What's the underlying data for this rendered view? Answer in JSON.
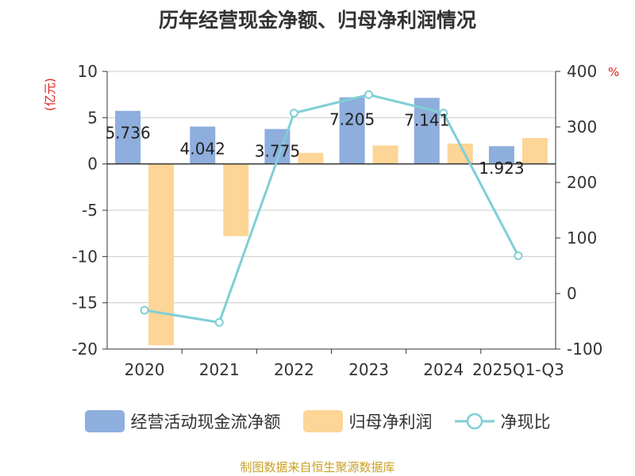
{
  "chart_data": {
    "type": "bar",
    "title": "历年经营现金净额、归母净利润情况",
    "categories": [
      "2020",
      "2021",
      "2022",
      "2023",
      "2024",
      "2025Q1-Q3"
    ],
    "series": [
      {
        "name": "经营活动现金流净额",
        "type": "bar",
        "axis": "left",
        "color": "#8eaedd",
        "values": [
          5.736,
          4.042,
          3.775,
          7.205,
          7.141,
          1.923
        ],
        "labels": [
          "5.736",
          "4.042",
          "3.775",
          "7.205",
          "7.141",
          "1.923"
        ]
      },
      {
        "name": "归母净利润",
        "type": "bar",
        "axis": "left",
        "color": "#fdd596",
        "values": [
          -19.6,
          -7.8,
          1.2,
          2.0,
          2.2,
          2.8
        ]
      },
      {
        "name": "净现比",
        "type": "line",
        "axis": "right",
        "color": "#7fcfd6",
        "values": [
          -30,
          -52,
          325,
          358,
          325,
          68
        ]
      }
    ],
    "y_left": {
      "unit": "(亿元)",
      "min": -20,
      "max": 10,
      "ticks": [
        10,
        5,
        0,
        -5,
        -10,
        -15,
        -20
      ]
    },
    "y_right": {
      "unit": "%",
      "min": -100,
      "max": 400,
      "ticks": [
        400,
        300,
        200,
        100,
        0,
        -100
      ]
    },
    "grid": true,
    "legend_position": "bottom"
  },
  "source": "制图数据来自恒生聚源数据库"
}
